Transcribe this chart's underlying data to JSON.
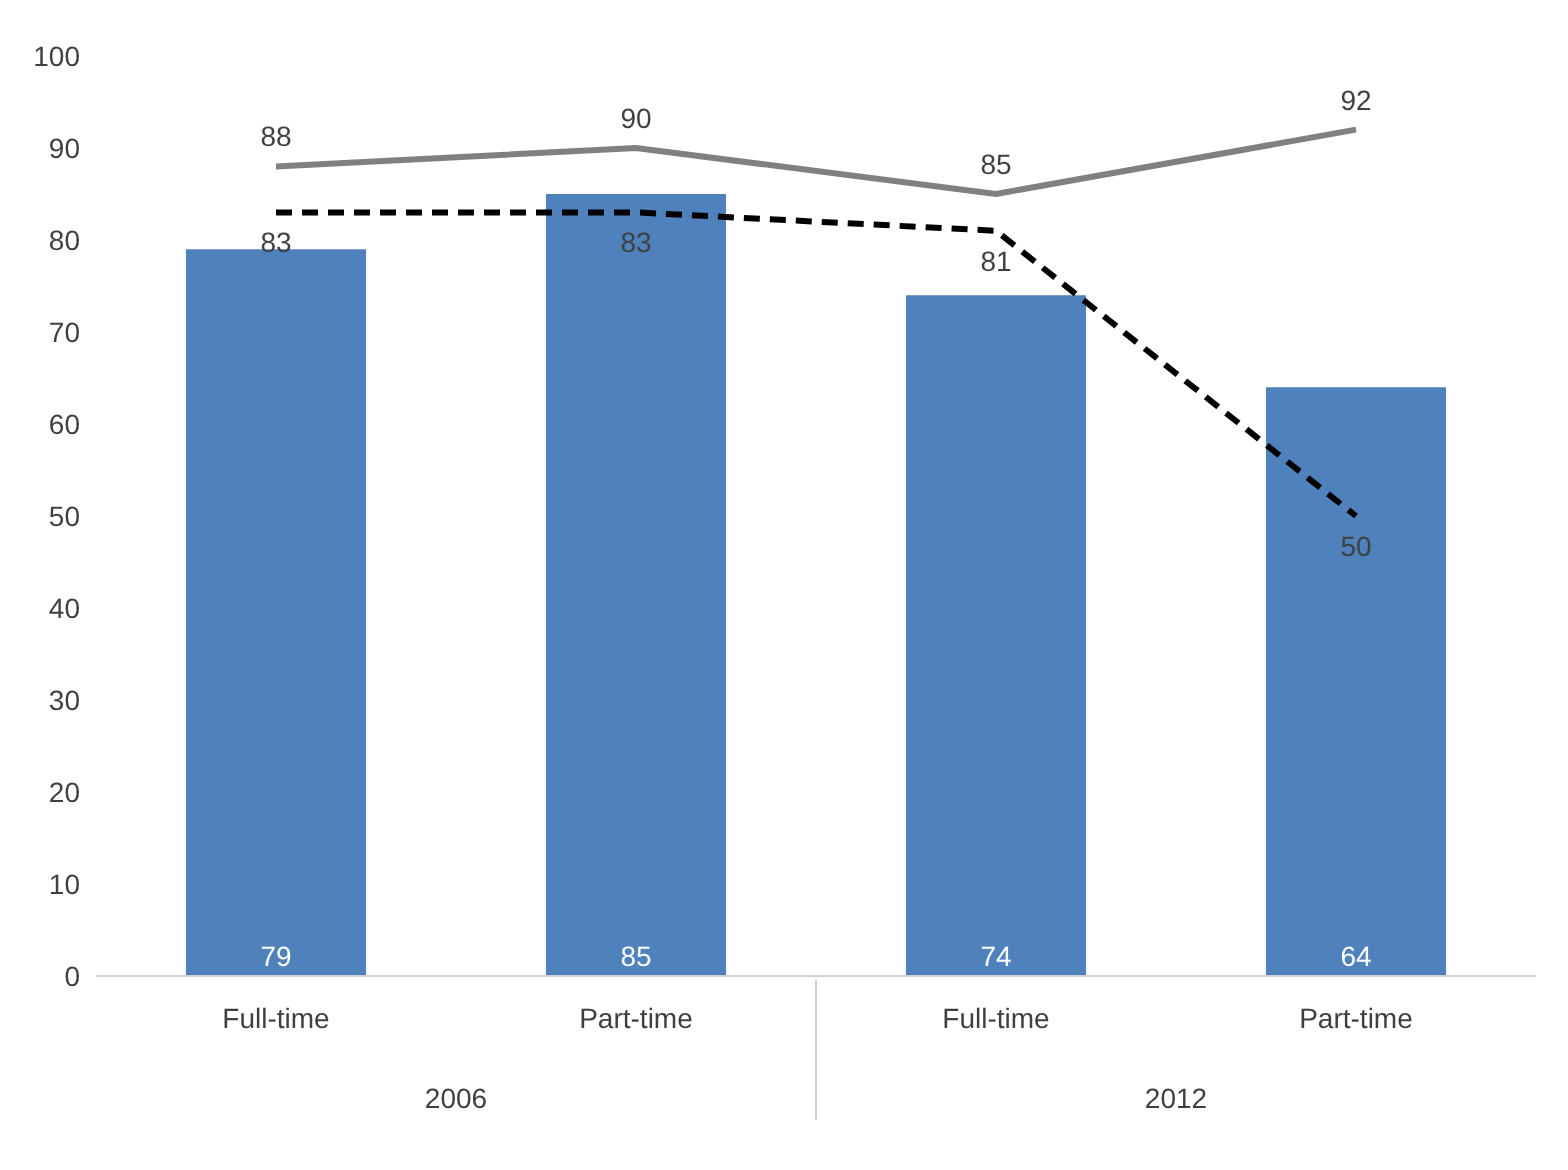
{
  "chart_data": {
    "type": "bar",
    "categories": [
      "Full-time",
      "Part-time",
      "Full-time",
      "Part-time"
    ],
    "series": [
      {
        "color": "#4f81bd",
        "values": [
          79,
          85,
          74,
          64
        ]
      },
      {
        "type": "line",
        "color": "#808080",
        "line_style": "solid",
        "values": [
          88,
          90,
          85,
          92
        ]
      },
      {
        "type": "line",
        "color": "#000000",
        "line_style": "dashed",
        "values": [
          83,
          83,
          81,
          50
        ]
      }
    ],
    "annotations": [
      "2006",
      "2012"
    ],
    "ylim": [
      0,
      100
    ],
    "yticks": [
      0,
      10,
      20,
      30,
      40,
      50,
      60,
      70,
      80,
      90,
      100
    ],
    "grid": false,
    "legend": false,
    "marker": "none",
    "data_labels": true
  }
}
